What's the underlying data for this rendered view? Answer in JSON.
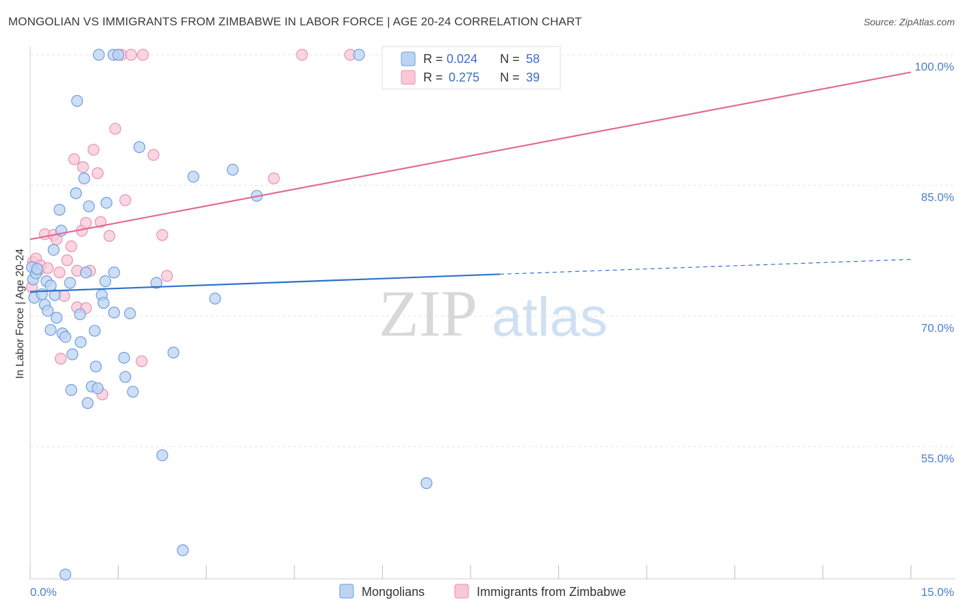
{
  "header": {
    "title": "MONGOLIAN VS IMMIGRANTS FROM ZIMBABWE IN LABOR FORCE | AGE 20-24 CORRELATION CHART",
    "source": "Source: ZipAtlas.com"
  },
  "watermark": {
    "zip": "ZIP",
    "atlas": "atlas"
  },
  "legend_top": {
    "rows": [
      {
        "r_label": "R =",
        "r_value": "0.024",
        "n_label": "N =",
        "n_value": "58"
      },
      {
        "r_label": "R =",
        "r_value": "0.275",
        "n_label": "N =",
        "n_value": "39"
      }
    ]
  },
  "legend_bottom": {
    "items": [
      "Mongolians",
      "Immigrants from Zimbabwe"
    ]
  },
  "colors": {
    "mongolian_fill": "#bcd4f2",
    "mongolian_stroke": "#6d9be0",
    "mongolian_line": "#2d6fcc",
    "zimbabwe_fill": "#f8c8d8",
    "zimbabwe_stroke": "#e890ae",
    "zimbabwe_line": "#e06a94",
    "tick_text": "#4a7fc8",
    "grid": "#e4e4e4"
  },
  "chart_data": {
    "type": "scatter",
    "ylabel": "In Labor Force | Age 20-24",
    "xlim": [
      0,
      15
    ],
    "ylim": [
      40,
      103
    ],
    "x_tick_labels": [
      "0.0%",
      "15.0%"
    ],
    "y_ticks": [
      55,
      70,
      85,
      100
    ],
    "y_tick_labels": [
      "55.0%",
      "70.0%",
      "85.0%",
      "100.0%"
    ],
    "grid": true,
    "series": [
      {
        "name": "Mongolians",
        "points": [
          [
            0.03,
            75.6
          ],
          [
            0.05,
            74.2
          ],
          [
            0.07,
            72.1
          ],
          [
            0.1,
            74.9
          ],
          [
            0.12,
            75.4
          ],
          [
            0.2,
            72.5
          ],
          [
            0.25,
            71.3
          ],
          [
            0.28,
            74.0
          ],
          [
            0.3,
            70.6
          ],
          [
            0.35,
            73.5
          ],
          [
            0.35,
            68.4
          ],
          [
            0.4,
            77.6
          ],
          [
            0.42,
            72.4
          ],
          [
            0.45,
            69.8
          ],
          [
            0.5,
            82.2
          ],
          [
            0.53,
            79.8
          ],
          [
            0.55,
            68.0
          ],
          [
            0.6,
            67.6
          ],
          [
            0.68,
            73.8
          ],
          [
            0.7,
            61.5
          ],
          [
            0.72,
            65.6
          ],
          [
            0.78,
            84.1
          ],
          [
            0.8,
            94.7
          ],
          [
            0.85,
            70.2
          ],
          [
            0.86,
            67.0
          ],
          [
            0.92,
            85.8
          ],
          [
            0.95,
            75.0
          ],
          [
            0.98,
            60.0
          ],
          [
            1.0,
            82.6
          ],
          [
            1.05,
            61.9
          ],
          [
            1.1,
            68.3
          ],
          [
            1.12,
            64.2
          ],
          [
            1.15,
            61.7
          ],
          [
            1.17,
            100.0
          ],
          [
            1.22,
            72.4
          ],
          [
            1.25,
            71.5
          ],
          [
            1.28,
            74.0
          ],
          [
            1.3,
            83.0
          ],
          [
            1.42,
            100.0
          ],
          [
            1.43,
            75.0
          ],
          [
            1.43,
            70.4
          ],
          [
            1.6,
            65.2
          ],
          [
            1.62,
            63.0
          ],
          [
            1.7,
            70.3
          ],
          [
            1.75,
            61.3
          ],
          [
            1.86,
            89.4
          ],
          [
            2.15,
            73.8
          ],
          [
            2.25,
            54.0
          ],
          [
            2.44,
            65.8
          ],
          [
            2.6,
            43.1
          ],
          [
            2.78,
            86.0
          ],
          [
            3.15,
            72.0
          ],
          [
            3.45,
            86.8
          ],
          [
            3.86,
            83.8
          ],
          [
            5.6,
            100.0
          ],
          [
            6.75,
            50.8
          ],
          [
            0.6,
            40.3
          ],
          [
            1.5,
            100.0
          ]
        ]
      },
      {
        "name": "Immigrants from Zimbabwe",
        "points": [
          [
            0.03,
            73.3
          ],
          [
            0.05,
            76.2
          ],
          [
            0.1,
            76.6
          ],
          [
            0.15,
            75.3
          ],
          [
            0.18,
            75.8
          ],
          [
            0.25,
            79.4
          ],
          [
            0.3,
            75.5
          ],
          [
            0.4,
            79.3
          ],
          [
            0.45,
            78.8
          ],
          [
            0.5,
            75.0
          ],
          [
            0.52,
            65.1
          ],
          [
            0.58,
            72.3
          ],
          [
            0.63,
            76.4
          ],
          [
            0.7,
            78.0
          ],
          [
            0.75,
            88.0
          ],
          [
            0.8,
            71.0
          ],
          [
            0.8,
            75.2
          ],
          [
            0.88,
            79.8
          ],
          [
            0.9,
            87.1
          ],
          [
            0.95,
            80.7
          ],
          [
            0.95,
            70.9
          ],
          [
            1.02,
            75.2
          ],
          [
            1.08,
            89.1
          ],
          [
            1.15,
            86.4
          ],
          [
            1.2,
            80.8
          ],
          [
            1.23,
            61.0
          ],
          [
            1.35,
            79.2
          ],
          [
            1.45,
            91.5
          ],
          [
            1.55,
            100.0
          ],
          [
            1.62,
            83.3
          ],
          [
            1.72,
            100.0
          ],
          [
            1.9,
            64.8
          ],
          [
            1.92,
            100.0
          ],
          [
            2.1,
            88.5
          ],
          [
            2.25,
            79.3
          ],
          [
            2.33,
            74.6
          ],
          [
            4.15,
            85.8
          ],
          [
            4.63,
            100.0
          ],
          [
            5.45,
            100.0
          ]
        ]
      }
    ],
    "trend_lines": [
      {
        "series": "Mongolians",
        "x_start": 0,
        "y_start": 72.8,
        "x_solid_end": 8.0,
        "y_solid_end": 74.8,
        "x_end": 15,
        "y_end": 76.5
      },
      {
        "series": "Immigrants from Zimbabwe",
        "x_start": 0,
        "y_start": 78.8,
        "x_end": 15,
        "y_end": 98.0
      }
    ]
  }
}
